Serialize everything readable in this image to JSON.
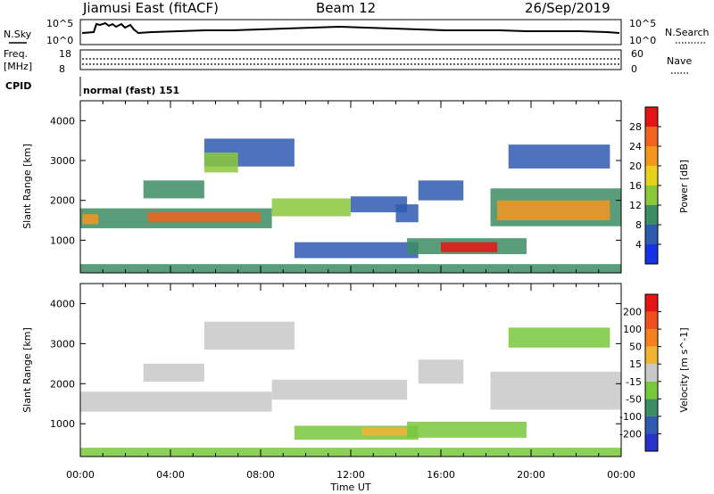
{
  "header": {
    "radar": "Jiamusi East (fitACF)",
    "beam": "Beam 12",
    "date": "26/Sep/2019"
  },
  "noise_panel": {
    "left_label": "N.Sky",
    "right_label": "N.Search",
    "left_ticks": [
      "10^5",
      "10^0"
    ],
    "right_ticks": [
      "10^5",
      "10^0"
    ]
  },
  "freq_panel": {
    "label_line1": "Freq.",
    "label_line2": "[MHz]",
    "left_ticks": [
      "18",
      "8"
    ],
    "right_label": "Nave",
    "right_ticks": [
      "60",
      "0"
    ]
  },
  "cpid_panel": {
    "label": "CPID",
    "text": "normal (fast) 151"
  },
  "chart_data": [
    {
      "type": "heatmap",
      "title": "",
      "xlabel": "Time UT",
      "ylabel": "Slant Range [km]",
      "x_ticks": [
        "00:00",
        "04:00",
        "08:00",
        "12:00",
        "16:00",
        "20:00",
        "00:00"
      ],
      "xlim": [
        0,
        24
      ],
      "ylim": [
        180,
        4500
      ],
      "y_ticks": [
        "1000",
        "2000",
        "3000",
        "4000"
      ],
      "y_tick_values": [
        1000,
        2000,
        3000,
        4000
      ],
      "colorbar": {
        "label": "Power [dB]",
        "ticks": [
          "4",
          "8",
          "12",
          "16",
          "20",
          "24",
          "28"
        ],
        "colors": [
          "#1432e6",
          "#2f5ab0",
          "#3c8c64",
          "#8cc83c",
          "#e6d21e",
          "#f5961e",
          "#f0641e",
          "#e61414"
        ]
      },
      "bands": [
        {
          "t0": 0.0,
          "t1": 8.5,
          "r0": 1300,
          "r1": 1800,
          "color": "#3c8c64"
        },
        {
          "t0": 0.1,
          "t1": 0.8,
          "r0": 1400,
          "r1": 1650,
          "color": "#f5961e"
        },
        {
          "t0": 3.0,
          "t1": 8.0,
          "r0": 1450,
          "r1": 1700,
          "color": "#f0641e"
        },
        {
          "t0": 8.5,
          "t1": 12.0,
          "r0": 1600,
          "r1": 2050,
          "color": "#8cc83c"
        },
        {
          "t0": 12.0,
          "t1": 14.5,
          "r0": 1700,
          "r1": 2100,
          "color": "#2f5ab0"
        },
        {
          "t0": 14.0,
          "t1": 15.0,
          "r0": 1450,
          "r1": 1900,
          "color": "#2f5ab0"
        },
        {
          "t0": 15.0,
          "t1": 17.0,
          "r0": 2000,
          "r1": 2500,
          "color": "#2f5ab0"
        },
        {
          "t0": 18.2,
          "t1": 24.0,
          "r0": 1350,
          "r1": 2300,
          "color": "#3c8c64"
        },
        {
          "t0": 18.5,
          "t1": 23.5,
          "r0": 1500,
          "r1": 2000,
          "color": "#f5961e"
        },
        {
          "t0": 9.5,
          "t1": 15.0,
          "r0": 550,
          "r1": 950,
          "color": "#2f5ab0"
        },
        {
          "t0": 14.5,
          "t1": 19.8,
          "r0": 650,
          "r1": 1050,
          "color": "#3c8c64"
        },
        {
          "t0": 16.0,
          "t1": 18.5,
          "r0": 700,
          "r1": 950,
          "color": "#e61414"
        },
        {
          "t0": 5.5,
          "t1": 9.5,
          "r0": 2850,
          "r1": 3550,
          "color": "#2f5ab0"
        },
        {
          "t0": 5.5,
          "t1": 7.0,
          "r0": 2700,
          "r1": 3200,
          "color": "#8cc83c"
        },
        {
          "t0": 2.8,
          "t1": 5.5,
          "r0": 2050,
          "r1": 2500,
          "color": "#3c8c64"
        },
        {
          "t0": 19.0,
          "t1": 23.5,
          "r0": 2800,
          "r1": 3400,
          "color": "#2f5ab0"
        },
        {
          "t0": 0.0,
          "t1": 24.0,
          "r0": 180,
          "r1": 400,
          "color": "#3c8c64"
        }
      ]
    },
    {
      "type": "heatmap",
      "title": "",
      "xlabel": "Time UT",
      "ylabel": "Slant Range [km]",
      "x_ticks": [
        "00:00",
        "04:00",
        "08:00",
        "12:00",
        "16:00",
        "20:00",
        "00:00"
      ],
      "xlim": [
        0,
        24
      ],
      "ylim": [
        180,
        4500
      ],
      "y_ticks": [
        "1000",
        "2000",
        "3000",
        "4000"
      ],
      "y_tick_values": [
        1000,
        2000,
        3000,
        4000
      ],
      "colorbar": {
        "label": "Velocity [m s^-1]",
        "ticks": [
          "200",
          "100",
          "50",
          "15",
          "-15",
          "-50",
          "-100",
          "-200"
        ],
        "colors": [
          "#2832c8",
          "#2f5ab0",
          "#3c8c64",
          "#78c83c",
          "#c8c8c8",
          "#f0b432",
          "#f5821e",
          "#f0501e",
          "#e61414"
        ]
      },
      "bands": [
        {
          "t0": 0.0,
          "t1": 8.5,
          "r0": 1300,
          "r1": 1800,
          "color": "#c8c8c8"
        },
        {
          "t0": 8.5,
          "t1": 14.5,
          "r0": 1600,
          "r1": 2100,
          "color": "#c8c8c8"
        },
        {
          "t0": 18.2,
          "t1": 24.0,
          "r0": 1350,
          "r1": 2300,
          "color": "#c8c8c8"
        },
        {
          "t0": 2.8,
          "t1": 5.5,
          "r0": 2050,
          "r1": 2500,
          "color": "#c8c8c8"
        },
        {
          "t0": 5.5,
          "t1": 9.5,
          "r0": 2850,
          "r1": 3550,
          "color": "#c8c8c8"
        },
        {
          "t0": 9.5,
          "t1": 15.0,
          "r0": 600,
          "r1": 950,
          "color": "#78c83c"
        },
        {
          "t0": 14.5,
          "t1": 19.8,
          "r0": 650,
          "r1": 1050,
          "color": "#78c83c"
        },
        {
          "t0": 12.5,
          "t1": 14.5,
          "r0": 700,
          "r1": 900,
          "color": "#f0b432"
        },
        {
          "t0": 19.0,
          "t1": 23.5,
          "r0": 2900,
          "r1": 3400,
          "color": "#78c83c"
        },
        {
          "t0": 15.0,
          "t1": 17.0,
          "r0": 2000,
          "r1": 2600,
          "color": "#c8c8c8"
        },
        {
          "t0": 0.0,
          "t1": 24.0,
          "r0": 180,
          "r1": 400,
          "color": "#78c83c"
        }
      ]
    }
  ]
}
